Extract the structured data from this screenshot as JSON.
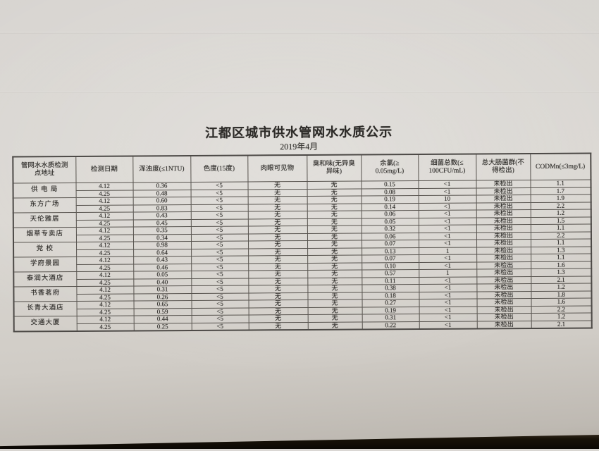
{
  "title": "江都区城市供水管网水水质公示",
  "subtitle": "2019年4月",
  "table": {
    "headers": [
      "管网水水质检测\n点地址",
      "检测日期",
      "浑浊度(≤1NTU)",
      "色度(15度)",
      "肉眼可见物",
      "臭和味(无异臭\n异味)",
      "余氯(≥\n0.05mg/L)",
      "细菌总数(≤\n100CFU/mL)",
      "总大肠菌群(不\n得检出)",
      "CODMn(≤3mg/L)"
    ],
    "groups": [
      {
        "location": "供 电 局",
        "rows": [
          [
            "4.12",
            "0.36",
            "<5",
            "无",
            "无",
            "0.15",
            "<1",
            "未检出",
            "1.1"
          ],
          [
            "4.25",
            "0.48",
            "<5",
            "无",
            "无",
            "0.08",
            "<1",
            "未检出",
            "1.7"
          ]
        ]
      },
      {
        "location": "东方广场",
        "rows": [
          [
            "4.12",
            "0.60",
            "<5",
            "无",
            "无",
            "0.19",
            "10",
            "未检出",
            "1.9"
          ],
          [
            "4.25",
            "0.83",
            "<5",
            "无",
            "无",
            "0.14",
            "<1",
            "未检出",
            "2.2"
          ]
        ]
      },
      {
        "location": "天伦雅居",
        "rows": [
          [
            "4.12",
            "0.43",
            "<5",
            "无",
            "无",
            "0.06",
            "<1",
            "未检出",
            "1.2"
          ],
          [
            "4.25",
            "0.45",
            "<5",
            "无",
            "无",
            "0.05",
            "<1",
            "未检出",
            "1.5"
          ]
        ]
      },
      {
        "location": "烟草专卖店",
        "rows": [
          [
            "4.12",
            "0.35",
            "<5",
            "无",
            "无",
            "0.32",
            "<1",
            "未检出",
            "1.1"
          ],
          [
            "4.25",
            "0.34",
            "<5",
            "无",
            "无",
            "0.06",
            "<1",
            "未检出",
            "2.2"
          ]
        ]
      },
      {
        "location": "党  校",
        "rows": [
          [
            "4.12",
            "0.98",
            "<5",
            "无",
            "无",
            "0.07",
            "<1",
            "未检出",
            "1.1"
          ],
          [
            "4.25",
            "0.64",
            "<5",
            "无",
            "无",
            "0.13",
            "1",
            "未检出",
            "1.3"
          ]
        ]
      },
      {
        "location": "学府景园",
        "rows": [
          [
            "4.12",
            "0.43",
            "<5",
            "无",
            "无",
            "0.07",
            "<1",
            "未检出",
            "1.1"
          ],
          [
            "4.25",
            "0.46",
            "<5",
            "无",
            "无",
            "0.10",
            "<1",
            "未检出",
            "1.6"
          ]
        ]
      },
      {
        "location": "泰润大酒店",
        "rows": [
          [
            "4.12",
            "0.05",
            "<5",
            "无",
            "无",
            "0.57",
            "1",
            "未检出",
            "1.3"
          ],
          [
            "4.25",
            "0.40",
            "<5",
            "无",
            "无",
            "0.11",
            "<1",
            "未检出",
            "2.1"
          ]
        ]
      },
      {
        "location": "书香茗府",
        "rows": [
          [
            "4.12",
            "0.31",
            "<5",
            "无",
            "无",
            "0.38",
            "<1",
            "未检出",
            "1.2"
          ],
          [
            "4.25",
            "0.26",
            "<5",
            "无",
            "无",
            "0.18",
            "<1",
            "未检出",
            "1.8"
          ]
        ]
      },
      {
        "location": "长青大酒店",
        "rows": [
          [
            "4.12",
            "0.65",
            "<5",
            "无",
            "无",
            "0.27",
            "<1",
            "未检出",
            "1.6"
          ],
          [
            "4.25",
            "0.59",
            "<5",
            "无",
            "无",
            "0.19",
            "<1",
            "未检出",
            "2.2"
          ]
        ]
      },
      {
        "location": "交通大厦",
        "rows": [
          [
            "4.12",
            "0.44",
            "<5",
            "无",
            "无",
            "0.31",
            "<1",
            "未检出",
            "1.2"
          ],
          [
            "4.25",
            "0.25",
            "<5",
            "无",
            "无",
            "0.22",
            "<1",
            "未检出",
            "2.1"
          ]
        ]
      }
    ]
  }
}
